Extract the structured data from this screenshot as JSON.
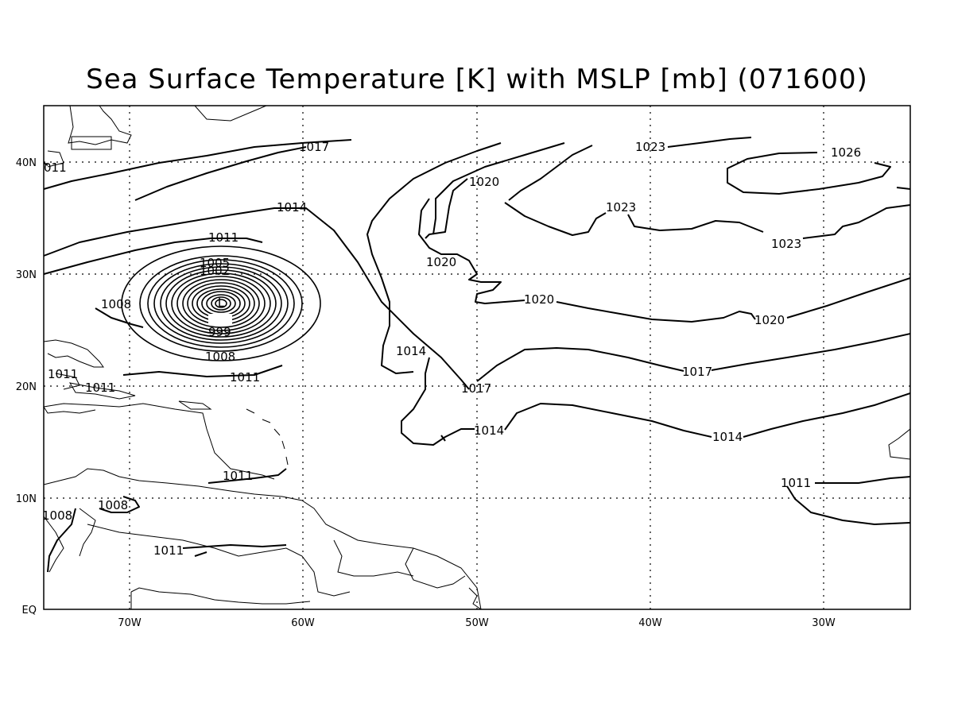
{
  "title": "Sea Surface Temperature [K] with MSLP [mb] (071600)",
  "axes": {
    "lon_ticks": [
      "70W",
      "60W",
      "50W",
      "40W",
      "30W"
    ],
    "lat_ticks": [
      "EQ",
      "10N",
      "20N",
      "30N",
      "40N"
    ]
  },
  "contour_labels": [
    "011",
    "1017",
    "1023",
    "1026",
    "1020",
    "1014",
    "1023",
    "1011",
    "1020",
    "1023",
    "1005",
    "1002",
    "1008",
    "1020",
    "1020",
    "999",
    "1014",
    "1008",
    "1011",
    "1011",
    "1017",
    "1011",
    "1017",
    "1014",
    "1014",
    "1011",
    "1011",
    "1008",
    "1008",
    "1011"
  ],
  "low_center_symbol": "L"
}
